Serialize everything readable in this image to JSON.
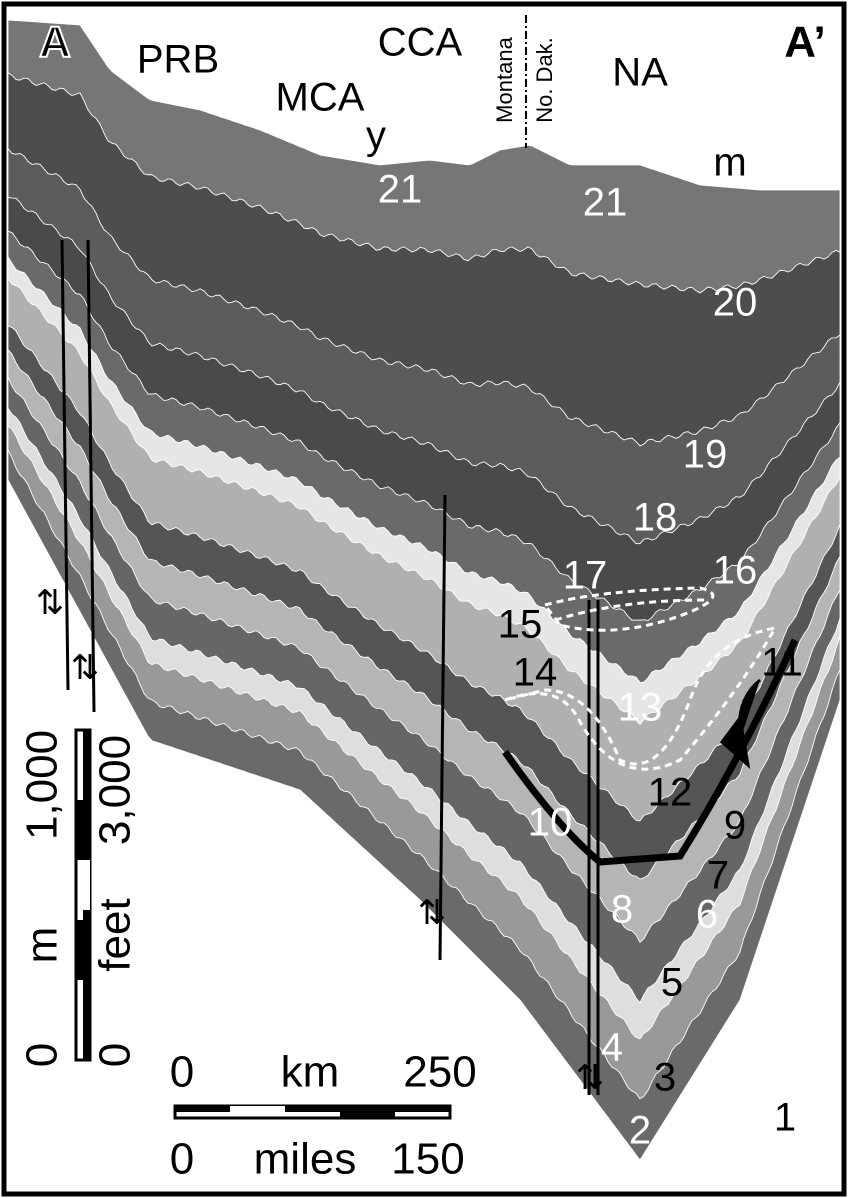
{
  "section_ends": {
    "left": "A",
    "right": "A’"
  },
  "regions": [
    "PRB",
    "MCA",
    "CCA",
    "NA"
  ],
  "state_line": {
    "west": "Montana",
    "east": "No. Dak."
  },
  "markers": [
    "y",
    "m"
  ],
  "units": [
    "21",
    "21",
    "20",
    "19",
    "18",
    "17",
    "16",
    "15",
    "14",
    "13",
    "11",
    "12",
    "10",
    "9",
    "7",
    "8",
    "6",
    "5",
    "4",
    "3",
    "2",
    "1"
  ],
  "vertical_scale": {
    "metric": {
      "zero": "0",
      "max": "1,000",
      "unit": "m"
    },
    "imperial": {
      "zero": "0",
      "max": "3,000",
      "unit": "feet"
    }
  },
  "horizontal_scale": {
    "metric": {
      "zero": "0",
      "max": "250",
      "unit": "km"
    },
    "imperial": {
      "zero": "0",
      "max": "150",
      "unit": "miles"
    }
  }
}
